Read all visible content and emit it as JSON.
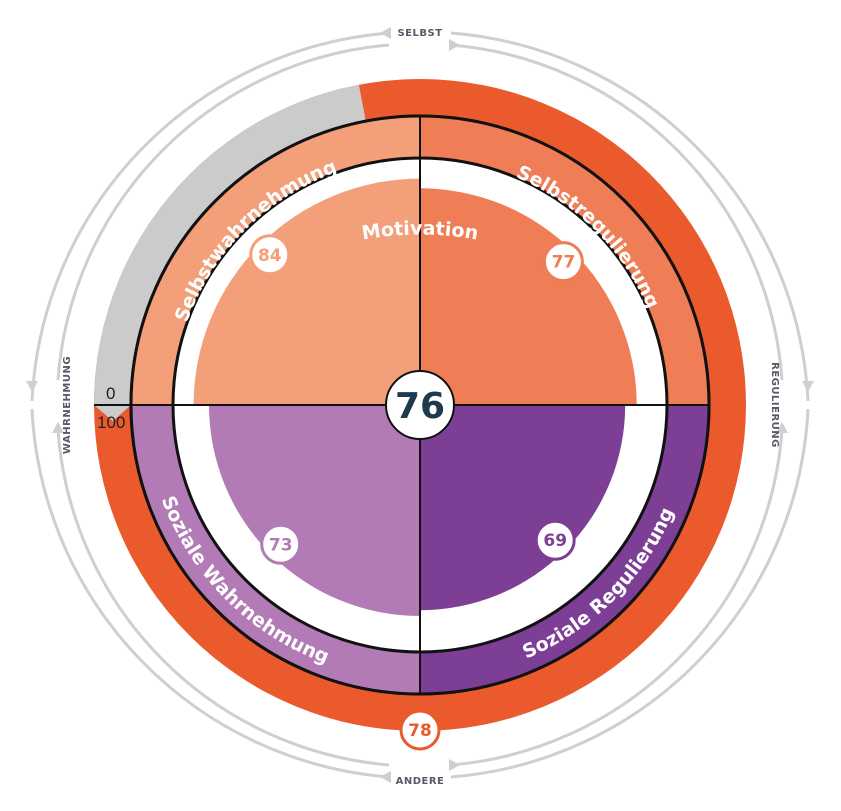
{
  "chart_data": {
    "type": "radial-quadrant",
    "overall_score": 76,
    "outer_ring": {
      "label": "Motivation",
      "value": 78
    },
    "quadrants": [
      {
        "label": "Selbstwahrnehmung",
        "value": 84,
        "position": "top-left"
      },
      {
        "label": "Selbstregulierung",
        "value": 77,
        "position": "top-right"
      },
      {
        "label": "Soziale Regulierung",
        "value": 69,
        "position": "bottom-right"
      },
      {
        "label": "Soziale Wahrnehmung",
        "value": 73,
        "position": "bottom-left"
      }
    ],
    "scale": {
      "min_label": "0",
      "max_label": "100",
      "min": 0,
      "max": 100
    },
    "axes": {
      "top": "SELBST",
      "bottom": "ANDERE",
      "left": "WAHRNEHMUNG",
      "right": "REGULIERUNG"
    },
    "colors": {
      "outer_ring": "#ea5a2c",
      "outer_ring_remainder": "#cbcbcb",
      "top-left": "#f3a07a",
      "top-right": "#ef7d55",
      "bottom-right": "#7d3f95",
      "bottom-left": "#b27bb6",
      "center_text": "#1e3a4e",
      "guide": "#cfcfcf",
      "direction_text": "#555b66"
    }
  }
}
